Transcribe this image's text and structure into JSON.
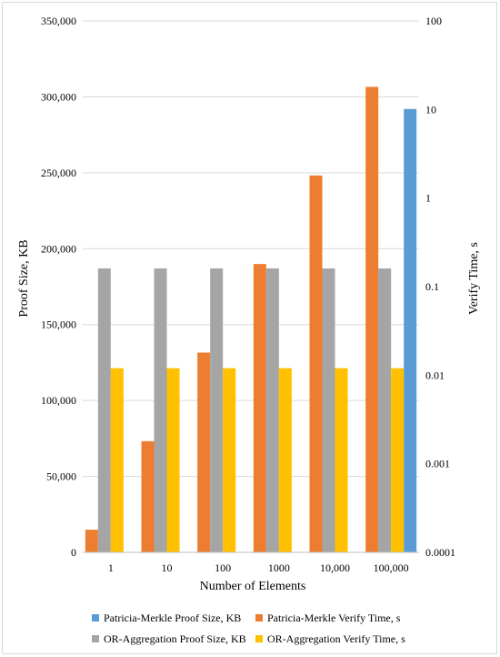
{
  "chart_data": {
    "type": "bar",
    "xlabel": "Number of Elements",
    "ylabel_left": "Proof Size, KB",
    "ylabel_right": "Verify Time, s",
    "categories": [
      "1",
      "10",
      "100",
      "1000",
      "10,000",
      "100,000"
    ],
    "left_axis": {
      "scale": "linear",
      "ylim": [
        0,
        350000
      ],
      "ticks": [
        0,
        50000,
        100000,
        150000,
        200000,
        250000,
        300000,
        350000
      ],
      "tick_labels": [
        "0",
        "50,000",
        "100,000",
        "150,000",
        "200,000",
        "250,000",
        "300,000",
        "350,000"
      ]
    },
    "right_axis": {
      "scale": "log",
      "ylim": [
        0.0001,
        100
      ],
      "ticks": [
        0.0001,
        0.001,
        0.01,
        0.1,
        1,
        10,
        100
      ],
      "tick_labels": [
        "0.0001",
        "0.001",
        "0.01",
        "0.1",
        "1",
        "10",
        "100"
      ]
    },
    "grid": true,
    "legend_position": "bottom",
    "series": [
      {
        "name": "Patricia-Merkle Proof Size, KB",
        "axis": "left",
        "color": "#5B9BD5",
        "values": [
          0,
          0,
          0,
          0,
          0,
          292000
        ]
      },
      {
        "name": "Patricia-Merkle Verify Time, s",
        "axis": "right",
        "color": "#ED7D31",
        "values": [
          0.00018,
          0.0018,
          0.018,
          0.18,
          1.8,
          18
        ]
      },
      {
        "name": "OR-Aggregation Proof Size, KB",
        "axis": "left",
        "color": "#A5A5A5",
        "values": [
          187000,
          187000,
          187000,
          187000,
          187000,
          187000
        ]
      },
      {
        "name": "OR-Aggregation Verify Time, s",
        "axis": "right",
        "color": "#FFC000",
        "values": [
          0.012,
          0.012,
          0.012,
          0.012,
          0.012,
          0.012
        ]
      }
    ]
  }
}
